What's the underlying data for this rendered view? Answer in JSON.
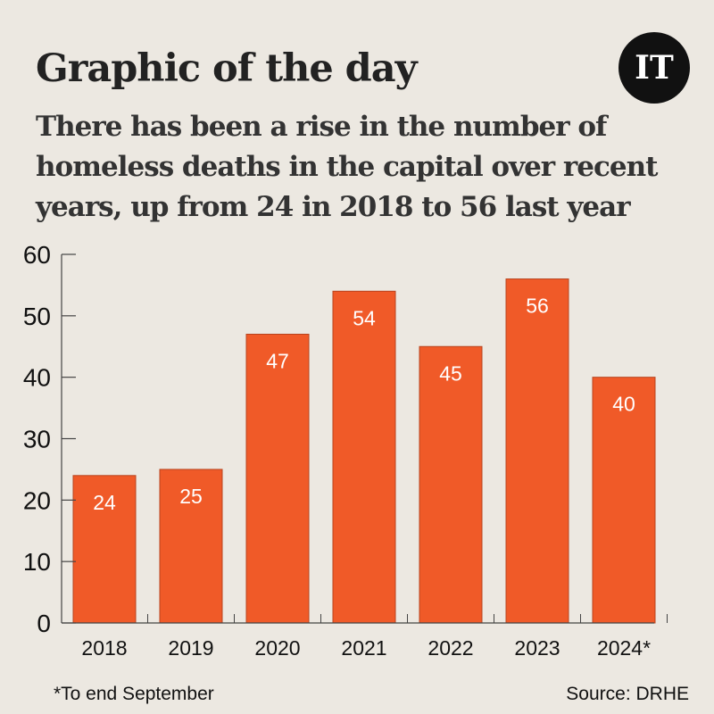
{
  "header": {
    "title": "Graphic of the day",
    "subtitle": "There has been a rise in the number of homeless deaths in the capital over recent years, up from 24 in 2018 to 56 last year",
    "logo_text": "IT"
  },
  "footer": {
    "note": "*To end September",
    "source": "Source:  DRHE"
  },
  "colors": {
    "background": "#ECE8E1",
    "bar": "#F05A28",
    "bar_outline": "#B8441E",
    "logo": "#111111"
  },
  "chart_data": {
    "type": "bar",
    "categories": [
      "2018",
      "2019",
      "2020",
      "2021",
      "2022",
      "2023",
      "2024*"
    ],
    "values": [
      24,
      25,
      47,
      54,
      45,
      56,
      40
    ],
    "data_labels": [
      "24",
      "25",
      "47",
      "54",
      "45",
      "56",
      "40"
    ],
    "yticks": [
      "0",
      "10",
      "20",
      "30",
      "40",
      "50",
      "60"
    ],
    "ylim": [
      0,
      60
    ],
    "title": "",
    "xlabel": "",
    "ylabel": "",
    "grid": false
  }
}
